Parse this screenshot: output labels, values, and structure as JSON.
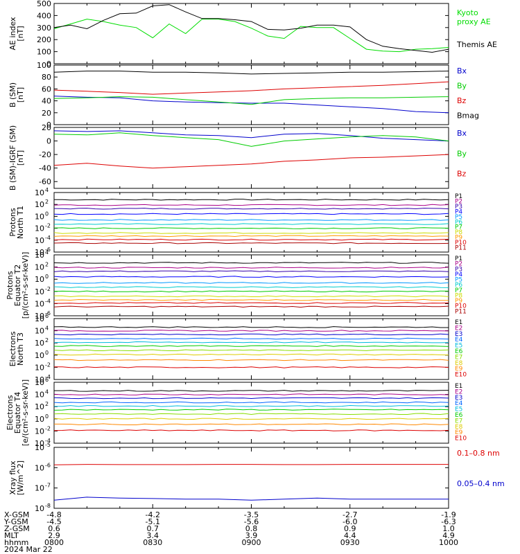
{
  "date_label": "2024 Mar 22",
  "x_axis": {
    "row_labels": [
      "X-GSM",
      "Y-GSM",
      "Z-GSM",
      "MLT",
      "hhmm"
    ],
    "columns": [
      {
        "t": "0800",
        "values": [
          "-4.8",
          "-4.5",
          "0.6",
          "2.9",
          "0800"
        ]
      },
      {
        "t": "0830",
        "values": [
          "-4.2",
          "-5.1",
          "0.7",
          "3.4",
          "0830"
        ]
      },
      {
        "t": "0900",
        "values": [
          "-3.5",
          "-5.6",
          "0.8",
          "3.9",
          "0900"
        ]
      },
      {
        "t": "0930",
        "values": [
          "-2.7",
          "-6.0",
          "0.9",
          "4.4",
          "0930"
        ]
      },
      {
        "t": "1000",
        "values": [
          "-1.9",
          "-6.3",
          "1.0",
          "4.9",
          "1000"
        ]
      }
    ]
  },
  "chart_data": [
    {
      "type": "line",
      "ylabel": [
        "AE index",
        "[nT]"
      ],
      "ylim": [
        0,
        500
      ],
      "yticks": [
        {
          "v": 0,
          "label": "0"
        },
        {
          "v": 100,
          "label": "100"
        },
        {
          "v": 200,
          "label": "200"
        },
        {
          "v": 300,
          "label": "300"
        },
        {
          "v": 400,
          "label": "400"
        },
        {
          "v": 500,
          "label": "500"
        }
      ],
      "series": [
        {
          "name": "Kyoto proxy AE",
          "color": "#00dd00",
          "x": [
            "0800",
            "0805",
            "0810",
            "0815",
            "0820",
            "0825",
            "0830",
            "0835",
            "0840",
            "0845",
            "0850",
            "0855",
            "0900",
            "0905",
            "0910",
            "0915",
            "0920",
            "0925",
            "0930",
            "0935",
            "0940",
            "0945",
            "0950",
            "0955",
            "1000"
          ],
          "y": [
            290,
            330,
            370,
            350,
            320,
            300,
            215,
            330,
            250,
            370,
            370,
            350,
            295,
            230,
            210,
            310,
            300,
            300,
            210,
            120,
            105,
            100,
            120,
            125,
            135
          ]
        },
        {
          "name": "Themis AE",
          "color": "#000000",
          "x": [
            "0800",
            "0805",
            "0810",
            "0815",
            "0820",
            "0825",
            "0830",
            "0835",
            "0840",
            "0845",
            "0850",
            "0855",
            "0900",
            "0905",
            "0910",
            "0915",
            "0920",
            "0925",
            "0930",
            "0935",
            "0940",
            "0945",
            "0950",
            "0955",
            "1000"
          ],
          "y": [
            300,
            320,
            290,
            360,
            415,
            420,
            480,
            490,
            430,
            375,
            375,
            365,
            350,
            285,
            280,
            295,
            320,
            320,
            305,
            200,
            145,
            125,
            110,
            95,
            120
          ]
        }
      ],
      "legend": [
        {
          "lines": [
            "Kyoto",
            "proxy AE"
          ],
          "color": "#00dd00"
        },
        {
          "lines": [
            "Themis AE"
          ],
          "color": "#000000"
        }
      ]
    },
    {
      "type": "line",
      "ylabel": [
        "B (SM)",
        "[nT]"
      ],
      "ylim": [
        0,
        100
      ],
      "yticks": [
        {
          "v": 0,
          "label": "0"
        },
        {
          "v": 20,
          "label": "20"
        },
        {
          "v": 40,
          "label": "40"
        },
        {
          "v": 60,
          "label": "60"
        },
        {
          "v": 80,
          "label": "80"
        },
        {
          "v": 100,
          "label": "100"
        }
      ],
      "series": [
        {
          "name": "Bx",
          "color": "#0000cc",
          "x": [
            "0800",
            "0810",
            "0820",
            "0830",
            "0840",
            "0850",
            "0900",
            "0910",
            "0920",
            "0930",
            "0940",
            "0950",
            "1000"
          ],
          "y": [
            48,
            46,
            45,
            40,
            38,
            37,
            36,
            36,
            33,
            30,
            27,
            22,
            20
          ]
        },
        {
          "name": "By",
          "color": "#00cc00",
          "x": [
            "0800",
            "0810",
            "0820",
            "0830",
            "0840",
            "0850",
            "0900",
            "0910",
            "0920",
            "0930",
            "0940",
            "0950",
            "1000"
          ],
          "y": [
            44,
            45,
            47,
            46,
            42,
            38,
            34,
            42,
            44,
            45,
            45,
            46,
            47
          ]
        },
        {
          "name": "Bz",
          "color": "#dd0000",
          "x": [
            "0800",
            "0810",
            "0820",
            "0830",
            "0840",
            "0850",
            "0900",
            "0910",
            "0920",
            "0930",
            "0940",
            "0950",
            "1000"
          ],
          "y": [
            58,
            56,
            54,
            51,
            53,
            55,
            57,
            60,
            62,
            64,
            66,
            69,
            72
          ]
        },
        {
          "name": "Bmag",
          "color": "#000000",
          "x": [
            "0800",
            "0810",
            "0820",
            "0830",
            "0840",
            "0850",
            "0900",
            "0910",
            "0920",
            "0930",
            "0940",
            "0950",
            "1000"
          ],
          "y": [
            88,
            90,
            90,
            88,
            88,
            87,
            85,
            86,
            87,
            88,
            88,
            89,
            90
          ]
        }
      ],
      "legend": [
        {
          "lines": [
            "Bx"
          ],
          "color": "#0000cc"
        },
        {
          "lines": [
            "By"
          ],
          "color": "#00cc00"
        },
        {
          "lines": [
            "Bz"
          ],
          "color": "#dd0000"
        },
        {
          "lines": [
            "Bmag"
          ],
          "color": "#000000"
        }
      ]
    },
    {
      "type": "line",
      "ylabel": [
        "B (SM)-IGRF (SM)",
        "[nT]"
      ],
      "ylim": [
        -70,
        20
      ],
      "yticks": [
        {
          "v": -60,
          "label": "-60"
        },
        {
          "v": -40,
          "label": "-40"
        },
        {
          "v": -20,
          "label": "-20"
        },
        {
          "v": 0,
          "label": "0"
        },
        {
          "v": 20,
          "label": "20"
        }
      ],
      "series": [
        {
          "name": "Bx",
          "color": "#0000cc",
          "x": [
            "0800",
            "0810",
            "0820",
            "0830",
            "0840",
            "0850",
            "0900",
            "0910",
            "0920",
            "0930",
            "0940",
            "0950",
            "1000"
          ],
          "y": [
            15,
            14,
            15,
            12,
            9,
            8,
            5,
            10,
            11,
            8,
            4,
            2,
            0
          ]
        },
        {
          "name": "By",
          "color": "#00cc00",
          "x": [
            "0800",
            "0810",
            "0820",
            "0830",
            "0840",
            "0850",
            "0900",
            "0910",
            "0920",
            "0930",
            "0940",
            "0950",
            "1000"
          ],
          "y": [
            10,
            9,
            12,
            8,
            5,
            2,
            -8,
            0,
            3,
            6,
            8,
            6,
            0
          ]
        },
        {
          "name": "Bz",
          "color": "#dd0000",
          "x": [
            "0800",
            "0810",
            "0820",
            "0830",
            "0840",
            "0850",
            "0900",
            "0910",
            "0920",
            "0930",
            "0940",
            "0950",
            "1000"
          ],
          "y": [
            -36,
            -33,
            -37,
            -40,
            -38,
            -36,
            -34,
            -30,
            -28,
            -25,
            -24,
            -22,
            -20
          ]
        }
      ],
      "legend": [
        {
          "lines": [
            "Bx"
          ],
          "color": "#0000cc"
        },
        {
          "lines": [
            "By"
          ],
          "color": "#00cc00"
        },
        {
          "lines": [
            "Bz"
          ],
          "color": "#dd0000"
        }
      ]
    },
    {
      "type": "line",
      "ylabel": [
        "Protons",
        "North T1"
      ],
      "yscale": "log",
      "ylim": [
        -6,
        4
      ],
      "yticks": [
        {
          "v": -6,
          "label": "10",
          "exp": "-6"
        },
        {
          "v": -4,
          "label": "10",
          "exp": "-4"
        },
        {
          "v": -2,
          "label": "10",
          "exp": "-2"
        },
        {
          "v": 0,
          "label": "10",
          "exp": "0"
        },
        {
          "v": 2,
          "label": "10",
          "exp": "2"
        },
        {
          "v": 4,
          "label": "10",
          "exp": "4"
        }
      ],
      "series": [
        {
          "name": "P1",
          "color": "#000000",
          "level": 2.8
        },
        {
          "name": "P2",
          "color": "#aa0088",
          "level": 1.9
        },
        {
          "name": "P3",
          "color": "#3300aa",
          "level": 1.3
        },
        {
          "name": "P4",
          "color": "#0000ff",
          "level": 0.4
        },
        {
          "name": "P5",
          "color": "#0099ff",
          "level": -0.6
        },
        {
          "name": "P6",
          "color": "#00cccc",
          "level": -1.3
        },
        {
          "name": "P7",
          "color": "#00cc00",
          "level": -2.0
        },
        {
          "name": "P8",
          "color": "#ccdd00",
          "level": -2.8
        },
        {
          "name": "P9",
          "color": "#ff9900",
          "level": -3.3
        },
        {
          "name": "P10",
          "color": "#dd0000",
          "level": -3.9
        },
        {
          "name": "P11",
          "color": "#aa0000",
          "level": -4.5
        }
      ]
    },
    {
      "type": "line",
      "ylabel": [
        "Protons",
        "Equator T2",
        "[p/(cm²-s-sr-keV)]"
      ],
      "yscale": "log",
      "ylim": [
        -6,
        4
      ],
      "yticks": [
        {
          "v": -6,
          "label": "10",
          "exp": "-6"
        },
        {
          "v": -4,
          "label": "10",
          "exp": "-4"
        },
        {
          "v": -2,
          "label": "10",
          "exp": "-2"
        },
        {
          "v": 0,
          "label": "10",
          "exp": "0"
        },
        {
          "v": 2,
          "label": "10",
          "exp": "2"
        },
        {
          "v": 4,
          "label": "10",
          "exp": "4"
        }
      ],
      "series": [
        {
          "name": "P1",
          "color": "#000000",
          "level": 2.7
        },
        {
          "name": "P2",
          "color": "#aa0088",
          "level": 1.9
        },
        {
          "name": "P3",
          "color": "#3300aa",
          "level": 1.3
        },
        {
          "name": "P4",
          "color": "#0000ff",
          "level": 0.4
        },
        {
          "name": "P5",
          "color": "#0099ff",
          "level": -0.6
        },
        {
          "name": "P6",
          "color": "#00cccc",
          "level": -1.3
        },
        {
          "name": "P7",
          "color": "#00cc00",
          "level": -2.0
        },
        {
          "name": "P8",
          "color": "#ccdd00",
          "level": -2.8
        },
        {
          "name": "P9",
          "color": "#ff9900",
          "level": -3.4
        },
        {
          "name": "P10",
          "color": "#dd0000",
          "level": -3.9
        },
        {
          "name": "P11",
          "color": "#aa0000",
          "level": -4.5
        }
      ]
    },
    {
      "type": "line",
      "ylabel": [
        "Electrons",
        "North T3"
      ],
      "yscale": "log",
      "ylim": [
        -4,
        6
      ],
      "yticks": [
        {
          "v": -4,
          "label": "10",
          "exp": "-4"
        },
        {
          "v": -2,
          "label": "10",
          "exp": "-2"
        },
        {
          "v": 0,
          "label": "10",
          "exp": "0"
        },
        {
          "v": 2,
          "label": "10",
          "exp": "2"
        },
        {
          "v": 4,
          "label": "10",
          "exp": "4"
        },
        {
          "v": 6,
          "label": "10",
          "exp": "6"
        }
      ],
      "series": [
        {
          "name": "E1",
          "color": "#000000",
          "level": 4.6
        },
        {
          "name": "E2",
          "color": "#aa0088",
          "level": 4.0
        },
        {
          "name": "E3",
          "color": "#0000cc",
          "level": 3.4
        },
        {
          "name": "E4",
          "color": "#0066ff",
          "level": 2.7
        },
        {
          "name": "E5",
          "color": "#00bbdd",
          "level": 2.1
        },
        {
          "name": "E6",
          "color": "#00cc00",
          "level": 1.5
        },
        {
          "name": "E7",
          "color": "#88dd00",
          "level": 0.8
        },
        {
          "name": "E8",
          "color": "#ddcc00",
          "level": 0.1
        },
        {
          "name": "E9",
          "color": "#ff8800",
          "level": -0.8
        },
        {
          "name": "E10",
          "color": "#dd0000",
          "level": -2.0
        }
      ]
    },
    {
      "type": "line",
      "ylabel": [
        "Electrons",
        "Equator T4",
        "[e/(cm²-s-sr-keV)]"
      ],
      "yscale": "log",
      "ylim": [
        -4,
        6
      ],
      "yticks": [
        {
          "v": -4,
          "label": "10",
          "exp": "-4"
        },
        {
          "v": -2,
          "label": "10",
          "exp": "-2"
        },
        {
          "v": 0,
          "label": "10",
          "exp": "0"
        },
        {
          "v": 2,
          "label": "10",
          "exp": "2"
        },
        {
          "v": 4,
          "label": "10",
          "exp": "4"
        },
        {
          "v": 6,
          "label": "10",
          "exp": "6"
        }
      ],
      "series": [
        {
          "name": "E1",
          "color": "#000000",
          "level": 4.6
        },
        {
          "name": "E2",
          "color": "#aa0088",
          "level": 4.0
        },
        {
          "name": "E3",
          "color": "#0000cc",
          "level": 3.4
        },
        {
          "name": "E4",
          "color": "#0066ff",
          "level": 2.7
        },
        {
          "name": "E5",
          "color": "#00bbdd",
          "level": 2.1
        },
        {
          "name": "E6",
          "color": "#00cc00",
          "level": 1.5
        },
        {
          "name": "E7",
          "color": "#88dd00",
          "level": 0.8
        },
        {
          "name": "E8",
          "color": "#ddcc00",
          "level": 0.0
        },
        {
          "name": "E9",
          "color": "#ff8800",
          "level": -0.9
        },
        {
          "name": "E10",
          "color": "#dd0000",
          "level": -1.9
        }
      ]
    },
    {
      "type": "line",
      "ylabel": [
        "Xray flux",
        "[W/m^2]"
      ],
      "yscale": "log",
      "ylim": [
        -8,
        -5
      ],
      "yticks": [
        {
          "v": -8,
          "label": "10",
          "exp": "-8"
        },
        {
          "v": -7,
          "label": "10",
          "exp": "-7"
        },
        {
          "v": -6,
          "label": "10",
          "exp": "-6"
        },
        {
          "v": -5,
          "label": "10",
          "exp": "-5"
        }
      ],
      "series": [
        {
          "name": "0.1–0.8 nm",
          "color": "#dd0000",
          "x": [
            "0800",
            "0810",
            "0820",
            "0830",
            "0840",
            "0850",
            "0900",
            "0910",
            "0920",
            "0930",
            "0940",
            "0950",
            "1000"
          ],
          "y": [
            -5.86,
            -5.84,
            -5.85,
            -5.85,
            -5.85,
            -5.84,
            -5.84,
            -5.85,
            -5.85,
            -5.84,
            -5.84,
            -5.84,
            -5.84
          ]
        },
        {
          "name": "0.05–0.4 nm",
          "color": "#0000cc",
          "x": [
            "0800",
            "0810",
            "0820",
            "0830",
            "0840",
            "0850",
            "0900",
            "0910",
            "0920",
            "0930",
            "0940",
            "0950",
            "1000"
          ],
          "y": [
            -7.6,
            -7.45,
            -7.5,
            -7.52,
            -7.55,
            -7.55,
            -7.6,
            -7.55,
            -7.5,
            -7.55,
            -7.55,
            -7.55,
            -7.55
          ]
        }
      ],
      "legend": [
        {
          "lines": [
            "0.1–0.8 nm"
          ],
          "color": "#dd0000"
        },
        {
          "lines": [
            "0.05–0.4 nm"
          ],
          "color": "#0000cc"
        }
      ]
    }
  ]
}
